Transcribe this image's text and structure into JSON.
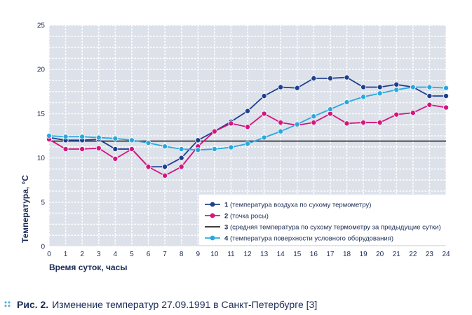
{
  "chart_data": {
    "type": "line",
    "x": [
      0,
      1,
      2,
      3,
      4,
      5,
      6,
      7,
      8,
      9,
      10,
      11,
      12,
      13,
      14,
      15,
      16,
      17,
      18,
      19,
      20,
      21,
      22,
      23,
      24
    ],
    "xlabel": "Время суток, часы",
    "ylabel": "Температура, °С",
    "xlim": [
      0,
      24
    ],
    "ylim": [
      0,
      25
    ],
    "y_ticks": [
      0,
      5,
      10,
      15,
      20,
      25
    ],
    "x_ticks": [
      "0",
      "1",
      "2",
      "3",
      "4",
      "5",
      "6",
      "7",
      "8",
      "9",
      "10",
      "11",
      "12",
      "13",
      "14",
      "15",
      "16",
      "17",
      "18",
      "19",
      "20",
      "21",
      "22",
      "23",
      "24"
    ],
    "grid": true,
    "legend_position": "bottom-right",
    "series": [
      {
        "name": "(температура воздуха по сухому термометру)",
        "number": "1",
        "color": "#1f3f8f",
        "markers": true,
        "values": [
          12.3,
          12.0,
          12.0,
          12.1,
          11.0,
          11.0,
          9.0,
          9.0,
          10.0,
          12.0,
          13.0,
          14.1,
          15.3,
          17.0,
          18.0,
          17.9,
          19.0,
          19.0,
          19.1,
          18.0,
          18.0,
          18.3,
          18.0,
          17.0,
          17.0
        ]
      },
      {
        "name": "(точка росы)",
        "number": "2",
        "color": "#d4167e",
        "markers": true,
        "values": [
          12.1,
          11.0,
          11.0,
          11.1,
          9.9,
          11.0,
          9.0,
          8.0,
          9.0,
          11.3,
          13.0,
          13.9,
          13.5,
          15.0,
          14.0,
          13.7,
          14.0,
          15.0,
          13.9,
          14.0,
          14.0,
          14.9,
          15.1,
          16.0,
          15.7
        ]
      },
      {
        "name": "(средняя температура по сухому термометру за предыдущие сутки)",
        "number": "3",
        "color": "#222222",
        "markers": false,
        "values": [
          11.9,
          11.9,
          11.9,
          11.9,
          11.9,
          11.9,
          11.9,
          11.9,
          11.9,
          11.9,
          11.9,
          11.9,
          11.9,
          11.9,
          11.9,
          11.9,
          11.9,
          11.9,
          11.9,
          11.9,
          11.9,
          11.9,
          11.9,
          11.9,
          11.9
        ]
      },
      {
        "name": "(температура поверхности условного оборудования)",
        "number": "4",
        "color": "#29a9e0",
        "markers": true,
        "values": [
          12.5,
          12.4,
          12.4,
          12.3,
          12.2,
          12.0,
          11.7,
          11.3,
          11.0,
          10.9,
          11.0,
          11.2,
          11.6,
          12.3,
          13.0,
          13.8,
          14.7,
          15.5,
          16.3,
          16.9,
          17.3,
          17.7,
          18.0,
          18.0,
          17.9
        ]
      }
    ],
    "caption": {
      "figure_label": "Рис. 2.",
      "text": "Изменение температур 27.09.1991 в Санкт-Петербурге [3]"
    }
  },
  "colors": {
    "plot_background": "#dde1ea",
    "grid": "#ffffff",
    "legend_background": "#ffffff",
    "axis_text": "#1a2a55",
    "caption_text": "#1a2a55",
    "caption_dots": "#4ab0d8"
  }
}
